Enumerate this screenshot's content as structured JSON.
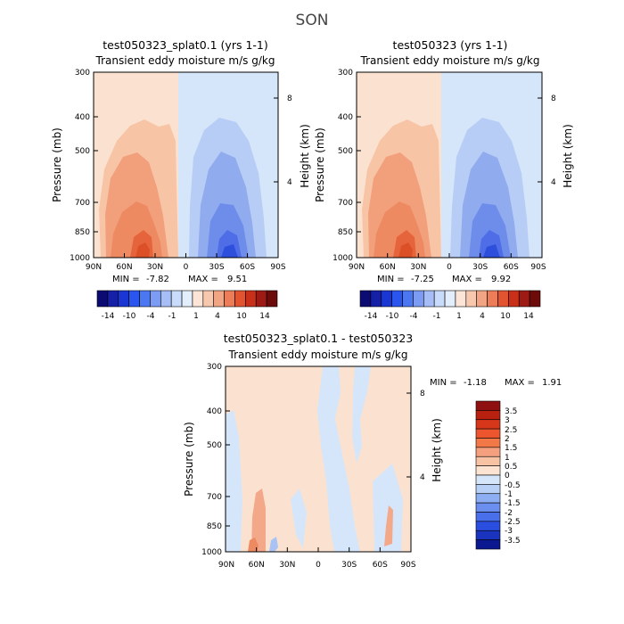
{
  "page_title": "SON",
  "colors": {
    "zero_light_red": "#FBE2D0",
    "zero_light_blue": "#D5E6FA",
    "frame": "#000000"
  },
  "chart_data": [
    {
      "type": "heatmap",
      "title": "test050323_splat0.1 (yrs 1-1)",
      "subtitle": "Transient eddy moisture m/s g/kg",
      "ylabel": "Pressure (mb)",
      "y2label": "Height (km)",
      "x_ticks": [
        "90N",
        "60N",
        "30N",
        "0",
        "30S",
        "60S",
        "90S"
      ],
      "y_ticks": [
        "300",
        "400",
        "500",
        "700",
        "850",
        "1000"
      ],
      "y2_ticks": [
        "8",
        "4"
      ],
      "stats": {
        "min_label": "MIN =",
        "min": "-7.82",
        "max_label": "MAX =",
        "max": "9.51"
      },
      "colorbar": {
        "orientation": "horizontal",
        "labels": [
          "-14",
          "-10",
          "-4",
          "-1",
          "1",
          "4",
          "10",
          "14"
        ],
        "colors": [
          "#0B0B73",
          "#1520A6",
          "#1A37D4",
          "#2A55EE",
          "#4B77F0",
          "#7C9BF2",
          "#A6BDF6",
          "#C9DBFB",
          "#E3EEFC",
          "#FCE5D6",
          "#F7C8AE",
          "#F2A584",
          "#EC7D58",
          "#E25430",
          "#C8301A",
          "#9E1A14",
          "#6D0A0A"
        ]
      }
    },
    {
      "type": "heatmap",
      "title": "test050323 (yrs 1-1)",
      "subtitle": "Transient eddy moisture m/s g/kg",
      "ylabel": "Pressure (mb)",
      "y2label": "Height (km)",
      "x_ticks": [
        "90N",
        "60N",
        "30N",
        "0",
        "30S",
        "60S",
        "90S"
      ],
      "y_ticks": [
        "300",
        "400",
        "500",
        "700",
        "850",
        "1000"
      ],
      "y2_ticks": [
        "8",
        "4"
      ],
      "stats": {
        "min_label": "MIN =",
        "min": "-7.25",
        "max_label": "MAX =",
        "max": "9.92"
      },
      "colorbar": {
        "orientation": "horizontal",
        "labels": [
          "-14",
          "-10",
          "-4",
          "-1",
          "1",
          "4",
          "10",
          "14"
        ],
        "colors": [
          "#0B0B73",
          "#1520A6",
          "#1A37D4",
          "#2A55EE",
          "#4B77F0",
          "#7C9BF2",
          "#A6BDF6",
          "#C9DBFB",
          "#E3EEFC",
          "#FCE5D6",
          "#F7C8AE",
          "#F2A584",
          "#EC7D58",
          "#E25430",
          "#C8301A",
          "#9E1A14",
          "#6D0A0A"
        ]
      }
    },
    {
      "type": "heatmap",
      "title": "test050323_splat0.1 - test050323",
      "subtitle": "Transient eddy moisture m/s g/kg",
      "ylabel": "Pressure (mb)",
      "y2label": "Height (km)",
      "x_ticks": [
        "90N",
        "60N",
        "30N",
        "0",
        "30S",
        "60S",
        "90S"
      ],
      "y_ticks": [
        "300",
        "400",
        "500",
        "700",
        "850",
        "1000"
      ],
      "y2_ticks": [
        "8",
        "4"
      ],
      "stats": {
        "min_label": "MIN =",
        "min": "-1.18",
        "max_label": "MAX =",
        "max": "1.91"
      },
      "colorbar": {
        "orientation": "vertical",
        "labels": [
          "3.5",
          "3",
          "2.5",
          "2",
          "1.5",
          "1",
          "0.5",
          "0",
          "-0.5",
          "-1",
          "-1.5",
          "-2",
          "-2.5",
          "-3",
          "-3.5"
        ],
        "colors": [
          "#8E1010",
          "#B8200F",
          "#D6361A",
          "#EC552E",
          "#F27848",
          "#F4A07E",
          "#F8C2A4",
          "#FCE3D2",
          "#D5E6FA",
          "#B8CFF6",
          "#8DAEF2",
          "#6A8FEE",
          "#4A6FEA",
          "#2A4FE0",
          "#1B34C0",
          "#0B1890"
        ]
      }
    }
  ]
}
